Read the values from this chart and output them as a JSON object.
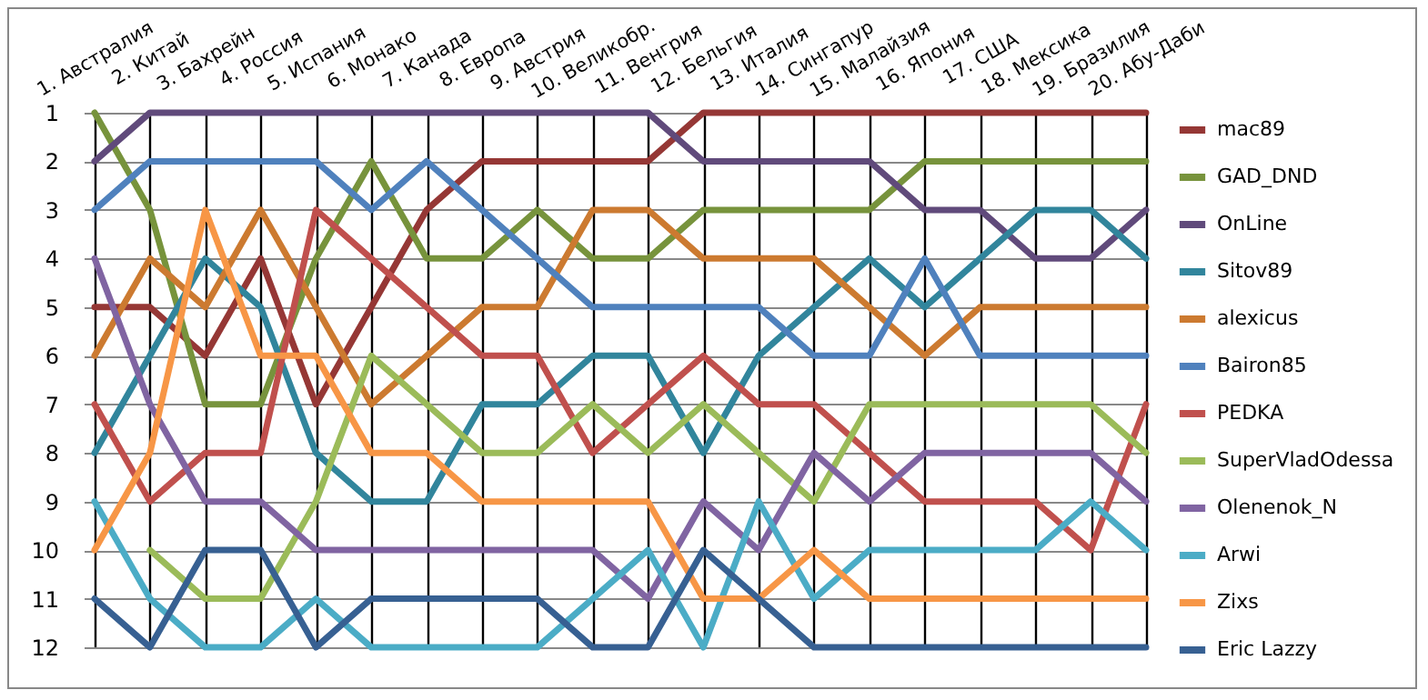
{
  "chart_data": {
    "type": "line",
    "categories": [
      "1. Австралия",
      "2. Китай",
      "3. Бахрейн",
      "4. Россия",
      "5. Испания",
      "6. Монако",
      "7. Канада",
      "8. Европа",
      "9. Австрия",
      "10. Великобр.",
      "11. Венгрия",
      "12. Бельгия",
      "13. Италия",
      "14. Сингапур",
      "15. Малайзия",
      "16. Япония",
      "17. США",
      "18. Мексика",
      "19. Бразилия",
      "20. Абу-Даби"
    ],
    "ylim": [
      12,
      1
    ],
    "yticks": [
      1,
      2,
      3,
      4,
      5,
      6,
      7,
      8,
      9,
      10,
      11,
      12
    ],
    "grid": true,
    "legend": "right",
    "marker": "none",
    "line_style": "solid",
    "series": [
      {
        "name": "mac89",
        "color": "#953735",
        "values": [
          5,
          5,
          6,
          4,
          7,
          5,
          3,
          2,
          2,
          2,
          2,
          1,
          1,
          1,
          1,
          1,
          1,
          1,
          1,
          1
        ]
      },
      {
        "name": "GAD_DND",
        "color": "#77933c",
        "values": [
          1,
          3,
          7,
          7,
          4,
          2,
          4,
          4,
          3,
          4,
          4,
          3,
          3,
          3,
          3,
          2,
          2,
          2,
          2,
          2
        ]
      },
      {
        "name": "OnLine",
        "color": "#604a7b",
        "values": [
          2,
          1,
          1,
          1,
          1,
          1,
          1,
          1,
          1,
          1,
          1,
          2,
          2,
          2,
          2,
          3,
          3,
          4,
          4,
          3
        ]
      },
      {
        "name": "Sitov89",
        "color": "#31859c",
        "values": [
          8,
          6,
          4,
          5,
          8,
          9,
          9,
          7,
          7,
          6,
          6,
          8,
          6,
          5,
          4,
          5,
          4,
          3,
          3,
          4
        ]
      },
      {
        "name": "alexicus",
        "color": "#cc7a30",
        "values": [
          6,
          4,
          5,
          3,
          5,
          7,
          6,
          5,
          5,
          3,
          3,
          4,
          4,
          4,
          5,
          6,
          5,
          5,
          5,
          5
        ]
      },
      {
        "name": "Bairon85",
        "color": "#4f81bd",
        "values": [
          3,
          2,
          2,
          2,
          2,
          3,
          2,
          3,
          4,
          5,
          5,
          5,
          5,
          6,
          6,
          4,
          6,
          6,
          6,
          6
        ]
      },
      {
        "name": "PEDKA",
        "color": "#c0504d",
        "values": [
          7,
          9,
          8,
          8,
          3,
          4,
          5,
          6,
          6,
          8,
          7,
          6,
          7,
          7,
          8,
          9,
          9,
          9,
          10,
          7
        ]
      },
      {
        "name": "SuperVladOdessa",
        "color": "#9bbb59",
        "values": [
          null,
          10,
          11,
          11,
          9,
          6,
          7,
          8,
          8,
          7,
          8,
          7,
          8,
          9,
          7,
          7,
          7,
          7,
          7,
          8
        ]
      },
      {
        "name": "Olenenok_N",
        "color": "#8064a2",
        "values": [
          4,
          7,
          9,
          9,
          10,
          10,
          10,
          10,
          10,
          10,
          11,
          9,
          10,
          8,
          9,
          8,
          8,
          8,
          8,
          9
        ]
      },
      {
        "name": "Arwi",
        "color": "#4bacc6",
        "values": [
          9,
          11,
          12,
          12,
          11,
          12,
          12,
          12,
          12,
          11,
          10,
          12,
          9,
          11,
          10,
          10,
          10,
          10,
          9,
          10
        ]
      },
      {
        "name": "Zixs",
        "color": "#f79646",
        "values": [
          10,
          8,
          3,
          6,
          6,
          8,
          8,
          9,
          9,
          9,
          9,
          11,
          11,
          10,
          11,
          11,
          11,
          11,
          11,
          11
        ]
      },
      {
        "name": "Eric Lazzy",
        "color": "#376092",
        "values": [
          11,
          12,
          10,
          10,
          12,
          11,
          11,
          11,
          11,
          12,
          12,
          10,
          11,
          12,
          12,
          12,
          12,
          12,
          12,
          12
        ]
      }
    ]
  }
}
